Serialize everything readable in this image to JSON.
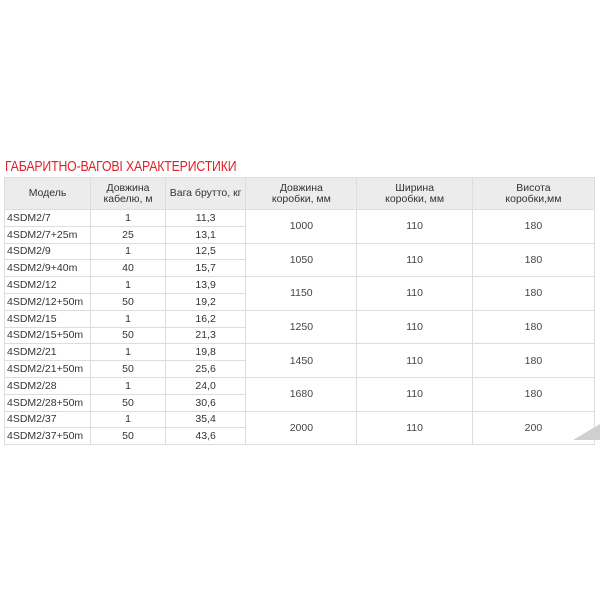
{
  "title": "ГАБАРИТНО-ВАГОВІ ХАРАКТЕРИСТИКИ",
  "headers": [
    "Модель",
    "Довжина кабелю, м",
    "Вага брутто, кг",
    "Довжина коробки, мм",
    "Ширина коробки, мм",
    "Висота коробки,мм"
  ],
  "groups": [
    {
      "rows": [
        [
          "4SDM2/7",
          "1",
          "11,3"
        ],
        [
          "4SDM2/7+25m",
          "25",
          "13,1"
        ]
      ],
      "box": [
        "1000",
        "110",
        "180"
      ]
    },
    {
      "rows": [
        [
          "4SDM2/9",
          "1",
          "12,5"
        ],
        [
          "4SDM2/9+40m",
          "40",
          "15,7"
        ]
      ],
      "box": [
        "1050",
        "110",
        "180"
      ]
    },
    {
      "rows": [
        [
          "4SDM2/12",
          "1",
          "13,9"
        ],
        [
          "4SDM2/12+50m",
          "50",
          "19,2"
        ]
      ],
      "box": [
        "1150",
        "110",
        "180"
      ]
    },
    {
      "rows": [
        [
          "4SDM2/15",
          "1",
          "16,2"
        ],
        [
          "4SDM2/15+50m",
          "50",
          "21,3"
        ]
      ],
      "box": [
        "1250",
        "110",
        "180"
      ]
    },
    {
      "rows": [
        [
          "4SDM2/21",
          "1",
          "19,8"
        ],
        [
          "4SDM2/21+50m",
          "50",
          "25,6"
        ]
      ],
      "box": [
        "1450",
        "110",
        "180"
      ]
    },
    {
      "rows": [
        [
          "4SDM2/28",
          "1",
          "24,0"
        ],
        [
          "4SDM2/28+50m",
          "50",
          "30,6"
        ]
      ],
      "box": [
        "1680",
        "110",
        "180"
      ]
    },
    {
      "rows": [
        [
          "4SDM2/37",
          "1",
          "35,4"
        ],
        [
          "4SDM2/37+50m",
          "50",
          "43,6"
        ]
      ],
      "box": [
        "2000",
        "110",
        "200"
      ]
    }
  ]
}
